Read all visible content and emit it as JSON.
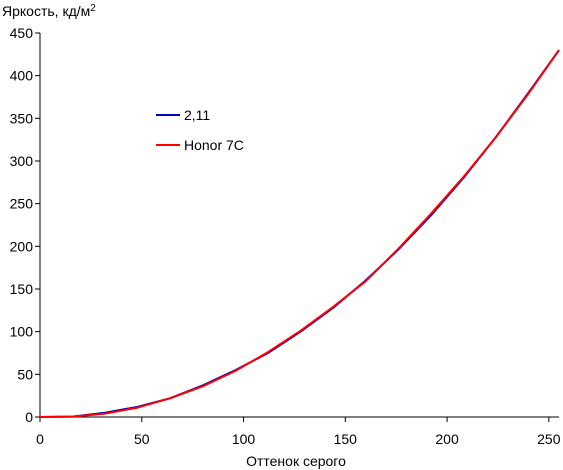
{
  "chart_data": {
    "type": "line",
    "title": "",
    "ylabel": "Яркость, кд/м",
    "ylabel_superscript": "2",
    "xlabel": "Оттенок серого",
    "xlim": [
      0,
      255
    ],
    "ylim": [
      0,
      450
    ],
    "xticks": [
      0,
      50,
      100,
      150,
      200,
      250
    ],
    "yticks": [
      0,
      50,
      100,
      150,
      200,
      250,
      300,
      350,
      400,
      450
    ],
    "grid": false,
    "legend_position": "upper-left-inside",
    "series": [
      {
        "name": "2,11",
        "color": "#0000cc",
        "x": [
          0,
          16,
          32,
          48,
          64,
          80,
          96,
          112,
          128,
          144,
          160,
          176,
          192,
          208,
          224,
          240,
          255
        ],
        "y": [
          0,
          0.5,
          5,
          12,
          22,
          37,
          55,
          75,
          100,
          128,
          160,
          196,
          236,
          280,
          328,
          380,
          430
        ]
      },
      {
        "name": "Honor 7C",
        "color": "#ff0000",
        "x": [
          0,
          16,
          32,
          48,
          64,
          80,
          96,
          112,
          128,
          144,
          160,
          176,
          192,
          208,
          224,
          240,
          255
        ],
        "y": [
          0,
          0.5,
          4,
          11,
          22,
          36,
          54,
          76,
          101,
          129,
          159,
          197,
          238,
          281,
          328,
          379,
          430
        ]
      }
    ]
  }
}
